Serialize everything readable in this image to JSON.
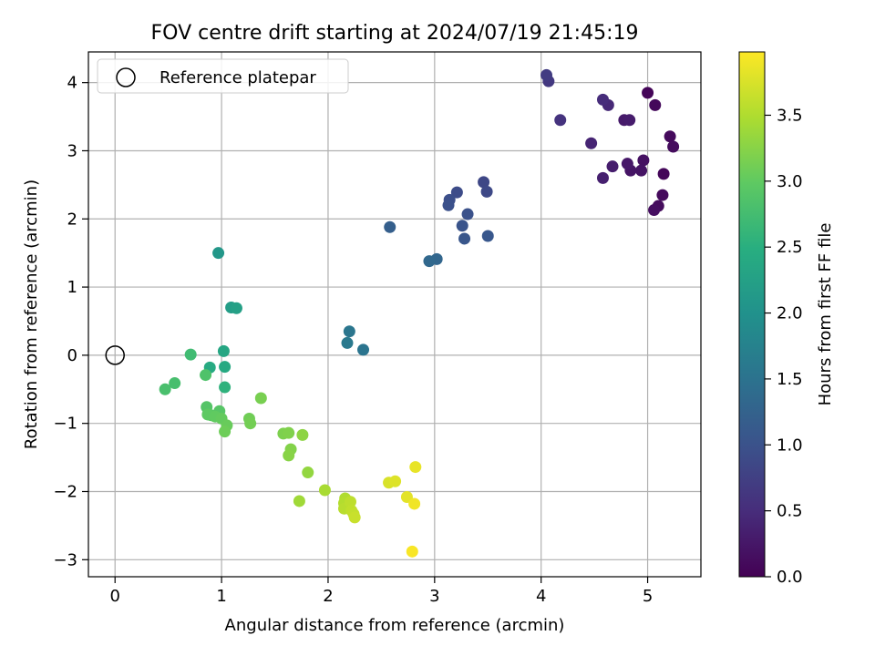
{
  "chart_data": {
    "type": "scatter",
    "title": "FOV centre drift starting at 2024/07/19 21:45:19",
    "xlabel": "Angular distance from reference (arcmin)",
    "ylabel": "Rotation from reference (arcmin)",
    "xlim": [
      -0.25,
      5.5
    ],
    "ylim": [
      -3.25,
      4.45
    ],
    "xticks": [
      0,
      1,
      2,
      3,
      4,
      5
    ],
    "yticks": [
      -3,
      -2,
      -1,
      0,
      1,
      2,
      3,
      4
    ],
    "grid": true,
    "legend": {
      "position": "upper-left",
      "entries": [
        "Reference platepar"
      ]
    },
    "reference_point": {
      "x": 0,
      "y": 0
    },
    "colorbar": {
      "label": "Hours from first FF file",
      "colormap": "viridis",
      "range": [
        0,
        3.98
      ],
      "ticks": [
        0.0,
        0.5,
        1.0,
        1.5,
        2.0,
        2.5,
        3.0,
        3.5
      ],
      "tick_labels": [
        "0.0",
        "0.5",
        "1.0",
        "1.5",
        "2.0",
        "2.5",
        "3.0",
        "3.5"
      ]
    },
    "points": [
      {
        "x": 5.0,
        "y": 3.85,
        "c": 0.05
      },
      {
        "x": 5.07,
        "y": 3.67,
        "c": 0.08
      },
      {
        "x": 5.21,
        "y": 3.21,
        "c": 0.1
      },
      {
        "x": 5.24,
        "y": 3.06,
        "c": 0.12
      },
      {
        "x": 5.15,
        "y": 2.66,
        "c": 0.06
      },
      {
        "x": 5.14,
        "y": 2.35,
        "c": 0.1
      },
      {
        "x": 5.1,
        "y": 2.19,
        "c": 0.12
      },
      {
        "x": 5.06,
        "y": 2.13,
        "c": 0.15
      },
      {
        "x": 4.96,
        "y": 2.86,
        "c": 0.18
      },
      {
        "x": 4.94,
        "y": 2.71,
        "c": 0.2
      },
      {
        "x": 4.84,
        "y": 2.71,
        "c": 0.22
      },
      {
        "x": 4.81,
        "y": 2.81,
        "c": 0.25
      },
      {
        "x": 4.78,
        "y": 3.45,
        "c": 0.28
      },
      {
        "x": 4.83,
        "y": 3.45,
        "c": 0.3
      },
      {
        "x": 4.67,
        "y": 2.77,
        "c": 0.32
      },
      {
        "x": 4.58,
        "y": 2.6,
        "c": 0.35
      },
      {
        "x": 4.47,
        "y": 3.11,
        "c": 0.4
      },
      {
        "x": 4.63,
        "y": 3.67,
        "c": 0.45
      },
      {
        "x": 4.58,
        "y": 3.75,
        "c": 0.5
      },
      {
        "x": 4.18,
        "y": 3.45,
        "c": 0.58
      },
      {
        "x": 4.07,
        "y": 4.02,
        "c": 0.65
      },
      {
        "x": 4.05,
        "y": 4.11,
        "c": 0.7
      },
      {
        "x": 3.46,
        "y": 2.54,
        "c": 0.85
      },
      {
        "x": 3.49,
        "y": 2.4,
        "c": 0.88
      },
      {
        "x": 3.21,
        "y": 2.39,
        "c": 0.92
      },
      {
        "x": 3.14,
        "y": 2.28,
        "c": 0.95
      },
      {
        "x": 3.13,
        "y": 2.2,
        "c": 0.98
      },
      {
        "x": 3.31,
        "y": 2.07,
        "c": 1.0
      },
      {
        "x": 3.26,
        "y": 1.9,
        "c": 1.02
      },
      {
        "x": 3.28,
        "y": 1.71,
        "c": 1.05
      },
      {
        "x": 3.5,
        "y": 1.75,
        "c": 1.08
      },
      {
        "x": 2.58,
        "y": 1.88,
        "c": 1.2
      },
      {
        "x": 3.02,
        "y": 1.41,
        "c": 1.3
      },
      {
        "x": 2.95,
        "y": 1.38,
        "c": 1.33
      },
      {
        "x": 2.2,
        "y": 0.35,
        "c": 1.55
      },
      {
        "x": 2.18,
        "y": 0.18,
        "c": 1.6
      },
      {
        "x": 2.33,
        "y": 0.08,
        "c": 1.52
      },
      {
        "x": 0.97,
        "y": 1.5,
        "c": 2.1
      },
      {
        "x": 1.09,
        "y": 0.7,
        "c": 2.2
      },
      {
        "x": 1.14,
        "y": 0.69,
        "c": 2.25
      },
      {
        "x": 1.02,
        "y": 0.06,
        "c": 2.35
      },
      {
        "x": 1.03,
        "y": -0.17,
        "c": 2.4
      },
      {
        "x": 0.89,
        "y": -0.18,
        "c": 2.42
      },
      {
        "x": 1.03,
        "y": -0.47,
        "c": 2.55
      },
      {
        "x": 0.71,
        "y": 0.01,
        "c": 2.72
      },
      {
        "x": 0.56,
        "y": -0.41,
        "c": 2.78
      },
      {
        "x": 0.47,
        "y": -0.5,
        "c": 2.8
      },
      {
        "x": 0.85,
        "y": -0.29,
        "c": 2.85
      },
      {
        "x": 0.86,
        "y": -0.76,
        "c": 2.9
      },
      {
        "x": 0.98,
        "y": -0.82,
        "c": 2.92
      },
      {
        "x": 0.9,
        "y": -0.88,
        "c": 2.95
      },
      {
        "x": 0.87,
        "y": -0.87,
        "c": 2.98
      },
      {
        "x": 0.94,
        "y": -0.9,
        "c": 3.0
      },
      {
        "x": 1.0,
        "y": -0.93,
        "c": 3.02
      },
      {
        "x": 1.05,
        "y": -1.03,
        "c": 3.05
      },
      {
        "x": 1.03,
        "y": -1.12,
        "c": 3.08
      },
      {
        "x": 1.26,
        "y": -0.93,
        "c": 3.1
      },
      {
        "x": 1.27,
        "y": -1.0,
        "c": 3.12
      },
      {
        "x": 1.37,
        "y": -0.63,
        "c": 3.15
      },
      {
        "x": 1.58,
        "y": -1.15,
        "c": 3.18
      },
      {
        "x": 1.63,
        "y": -1.14,
        "c": 3.2
      },
      {
        "x": 1.65,
        "y": -1.38,
        "c": 3.22
      },
      {
        "x": 1.63,
        "y": -1.47,
        "c": 3.25
      },
      {
        "x": 1.76,
        "y": -1.17,
        "c": 3.28
      },
      {
        "x": 1.81,
        "y": -1.72,
        "c": 3.32
      },
      {
        "x": 1.73,
        "y": -2.14,
        "c": 3.4
      },
      {
        "x": 1.97,
        "y": -1.98,
        "c": 3.45
      },
      {
        "x": 2.16,
        "y": -2.1,
        "c": 3.5
      },
      {
        "x": 2.15,
        "y": -2.17,
        "c": 3.52
      },
      {
        "x": 2.15,
        "y": -2.25,
        "c": 3.55
      },
      {
        "x": 2.21,
        "y": -2.15,
        "c": 3.58
      },
      {
        "x": 2.22,
        "y": -2.28,
        "c": 3.6
      },
      {
        "x": 2.24,
        "y": -2.33,
        "c": 3.62
      },
      {
        "x": 2.25,
        "y": -2.38,
        "c": 3.65
      },
      {
        "x": 2.57,
        "y": -1.87,
        "c": 3.75
      },
      {
        "x": 2.63,
        "y": -1.85,
        "c": 3.78
      },
      {
        "x": 2.74,
        "y": -2.08,
        "c": 3.82
      },
      {
        "x": 2.82,
        "y": -1.64,
        "c": 3.85
      },
      {
        "x": 2.81,
        "y": -2.18,
        "c": 3.9
      },
      {
        "x": 2.79,
        "y": -2.88,
        "c": 3.95
      }
    ]
  }
}
